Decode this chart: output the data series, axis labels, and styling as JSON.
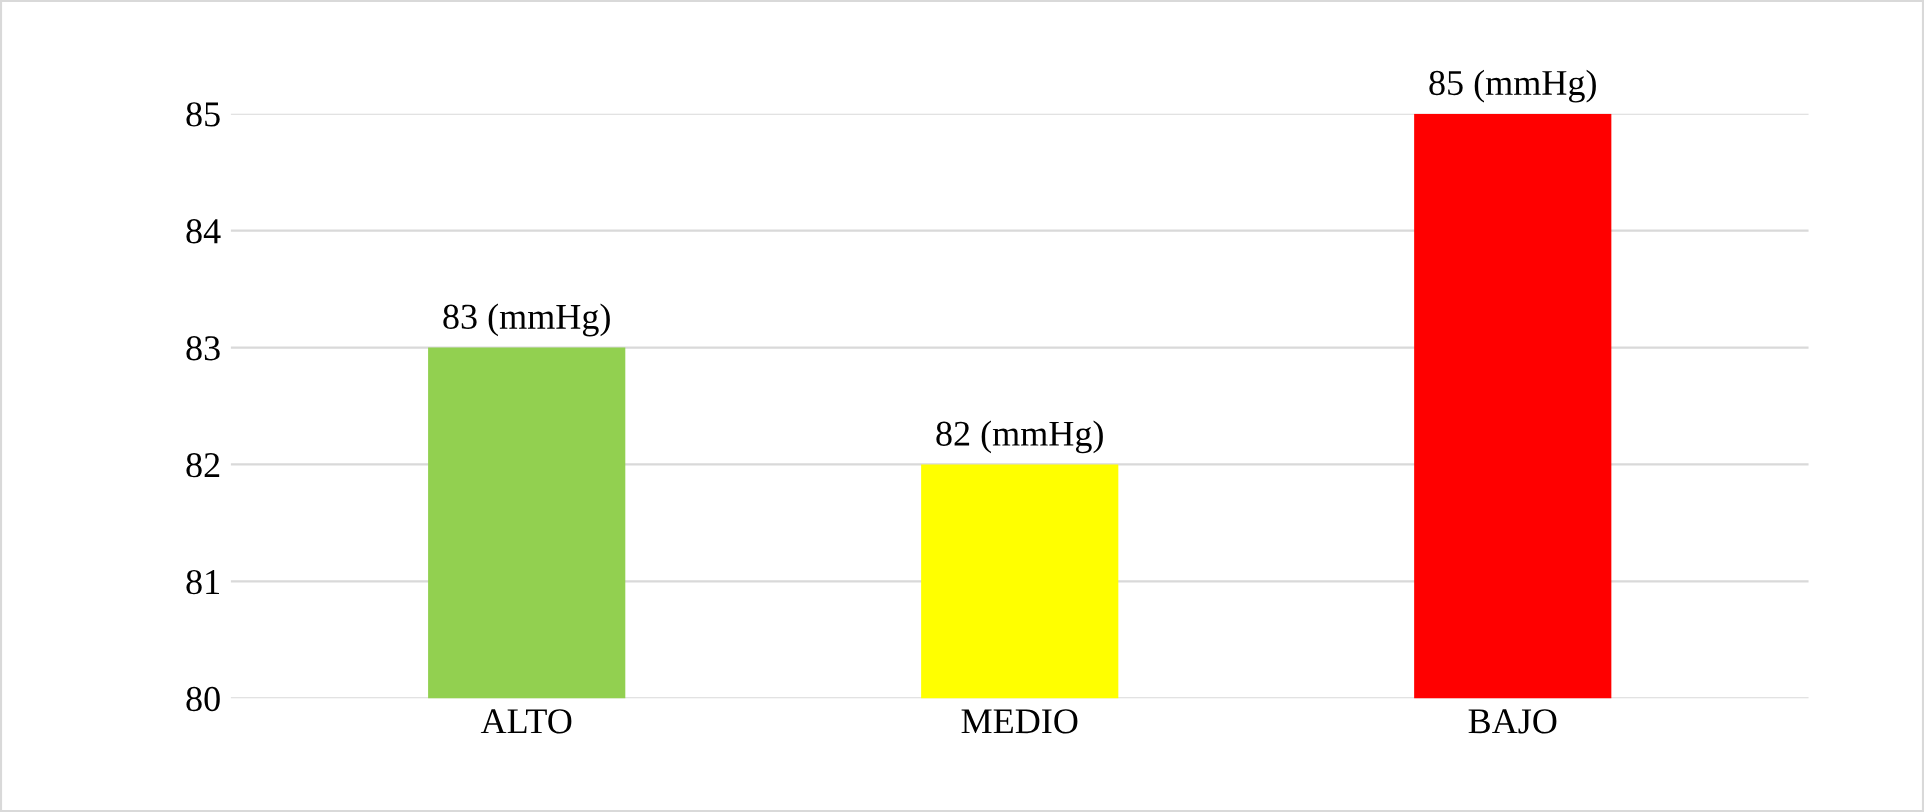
{
  "chart_data": {
    "type": "bar",
    "categories": [
      "ALTO",
      "MEDIO",
      "BAJO"
    ],
    "values": [
      83,
      82,
      85
    ],
    "colors": [
      "#92d050",
      "#ffff00",
      "#ff0000"
    ],
    "value_labels": [
      "83 (mmHg)",
      "82 (mmHg)",
      "85 (mmHg)"
    ],
    "ylim": [
      80,
      85
    ],
    "yticks": [
      80,
      81,
      82,
      83,
      84,
      85
    ],
    "grid": "y",
    "legend": false
  }
}
